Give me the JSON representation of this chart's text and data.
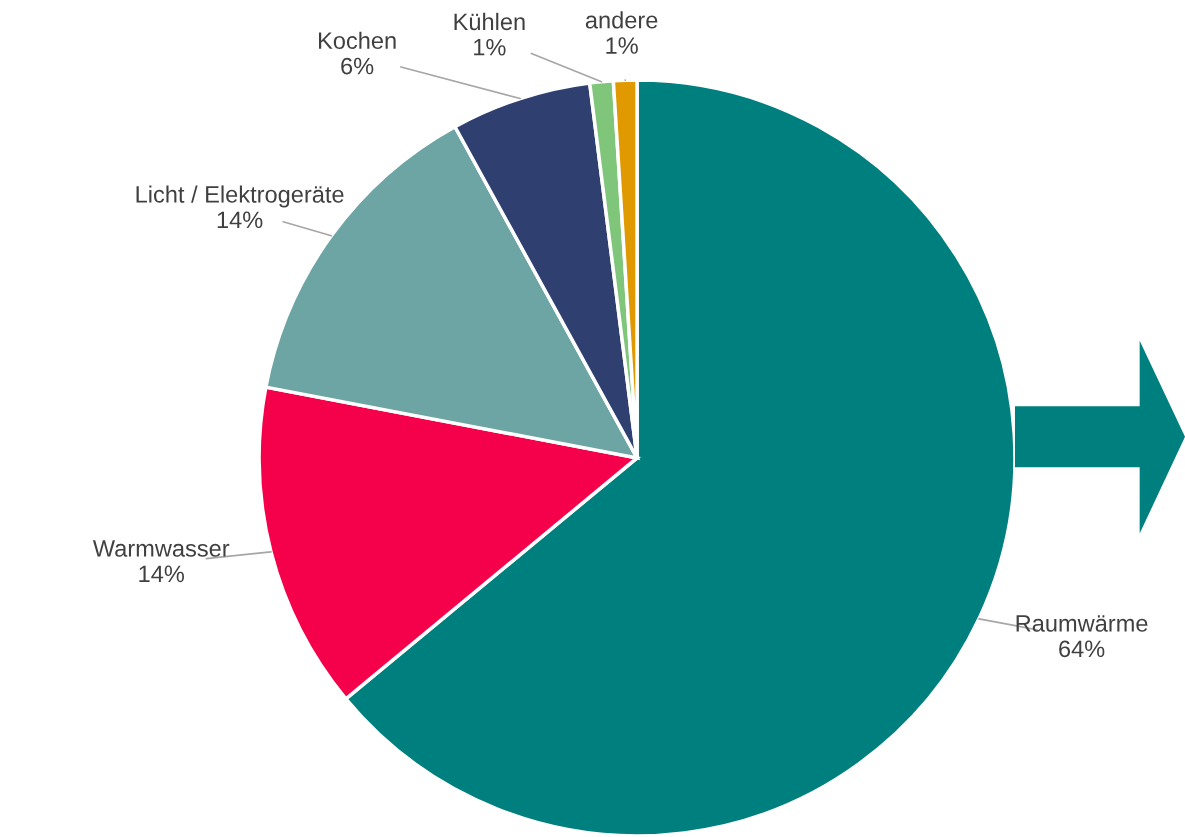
{
  "chart_data": {
    "type": "pie",
    "categories": [
      "Raumwärme",
      "Warmwasser",
      "Licht / Elektrogeräte",
      "Kochen",
      "Kühlen",
      "andere"
    ],
    "values": [
      64,
      14,
      14,
      6,
      1,
      1
    ],
    "colors": [
      "#007f7f",
      "#f5004a",
      "#6ca5a3",
      "#2e3f70",
      "#7fc67a",
      "#e09a00"
    ],
    "value_labels": [
      "64%",
      "14%",
      "14%",
      "6%",
      "1%",
      "1%"
    ]
  }
}
